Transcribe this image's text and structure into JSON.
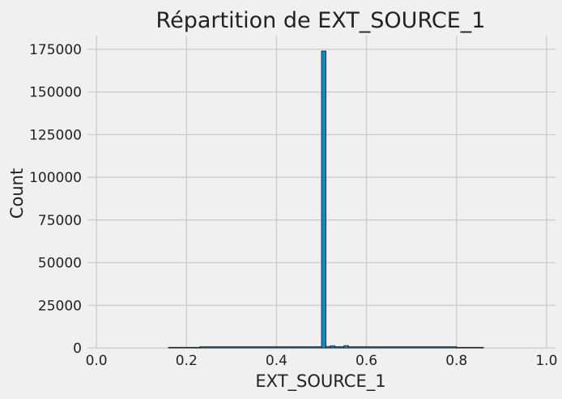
{
  "chart_data": {
    "type": "bar",
    "title": "Répartition de EXT_SOURCE_1",
    "xlabel": "EXT_SOURCE_1",
    "ylabel": "Count",
    "xlim": [
      -0.02,
      1.02
    ],
    "ylim": [
      0,
      183000
    ],
    "xticks": [
      0.0,
      0.2,
      0.4,
      0.6,
      0.8,
      1.0
    ],
    "xtick_labels": [
      "0.0",
      "0.2",
      "0.4",
      "0.6",
      "0.8",
      "1.0"
    ],
    "yticks": [
      0,
      25000,
      50000,
      75000,
      100000,
      125000,
      150000,
      175000
    ],
    "ytick_labels": [
      "0",
      "25000",
      "50000",
      "75000",
      "100000",
      "125000",
      "150000",
      "175000"
    ],
    "grid": true,
    "bar_color": "#008fd5",
    "edge_color": "#1a1a1a",
    "bins": [
      {
        "x0": 0.16,
        "x1": 0.23,
        "value": 150
      },
      {
        "x0": 0.23,
        "x1": 0.5,
        "value": 800
      },
      {
        "x0": 0.5,
        "x1": 0.51,
        "value": 174000
      },
      {
        "x0": 0.51,
        "x1": 0.52,
        "value": 900
      },
      {
        "x0": 0.52,
        "x1": 0.53,
        "value": 1300
      },
      {
        "x0": 0.53,
        "x1": 0.54,
        "value": 800
      },
      {
        "x0": 0.54,
        "x1": 0.55,
        "value": 800
      },
      {
        "x0": 0.55,
        "x1": 0.56,
        "value": 1400
      },
      {
        "x0": 0.56,
        "x1": 0.8,
        "value": 800
      },
      {
        "x0": 0.8,
        "x1": 0.86,
        "value": 150
      }
    ]
  }
}
